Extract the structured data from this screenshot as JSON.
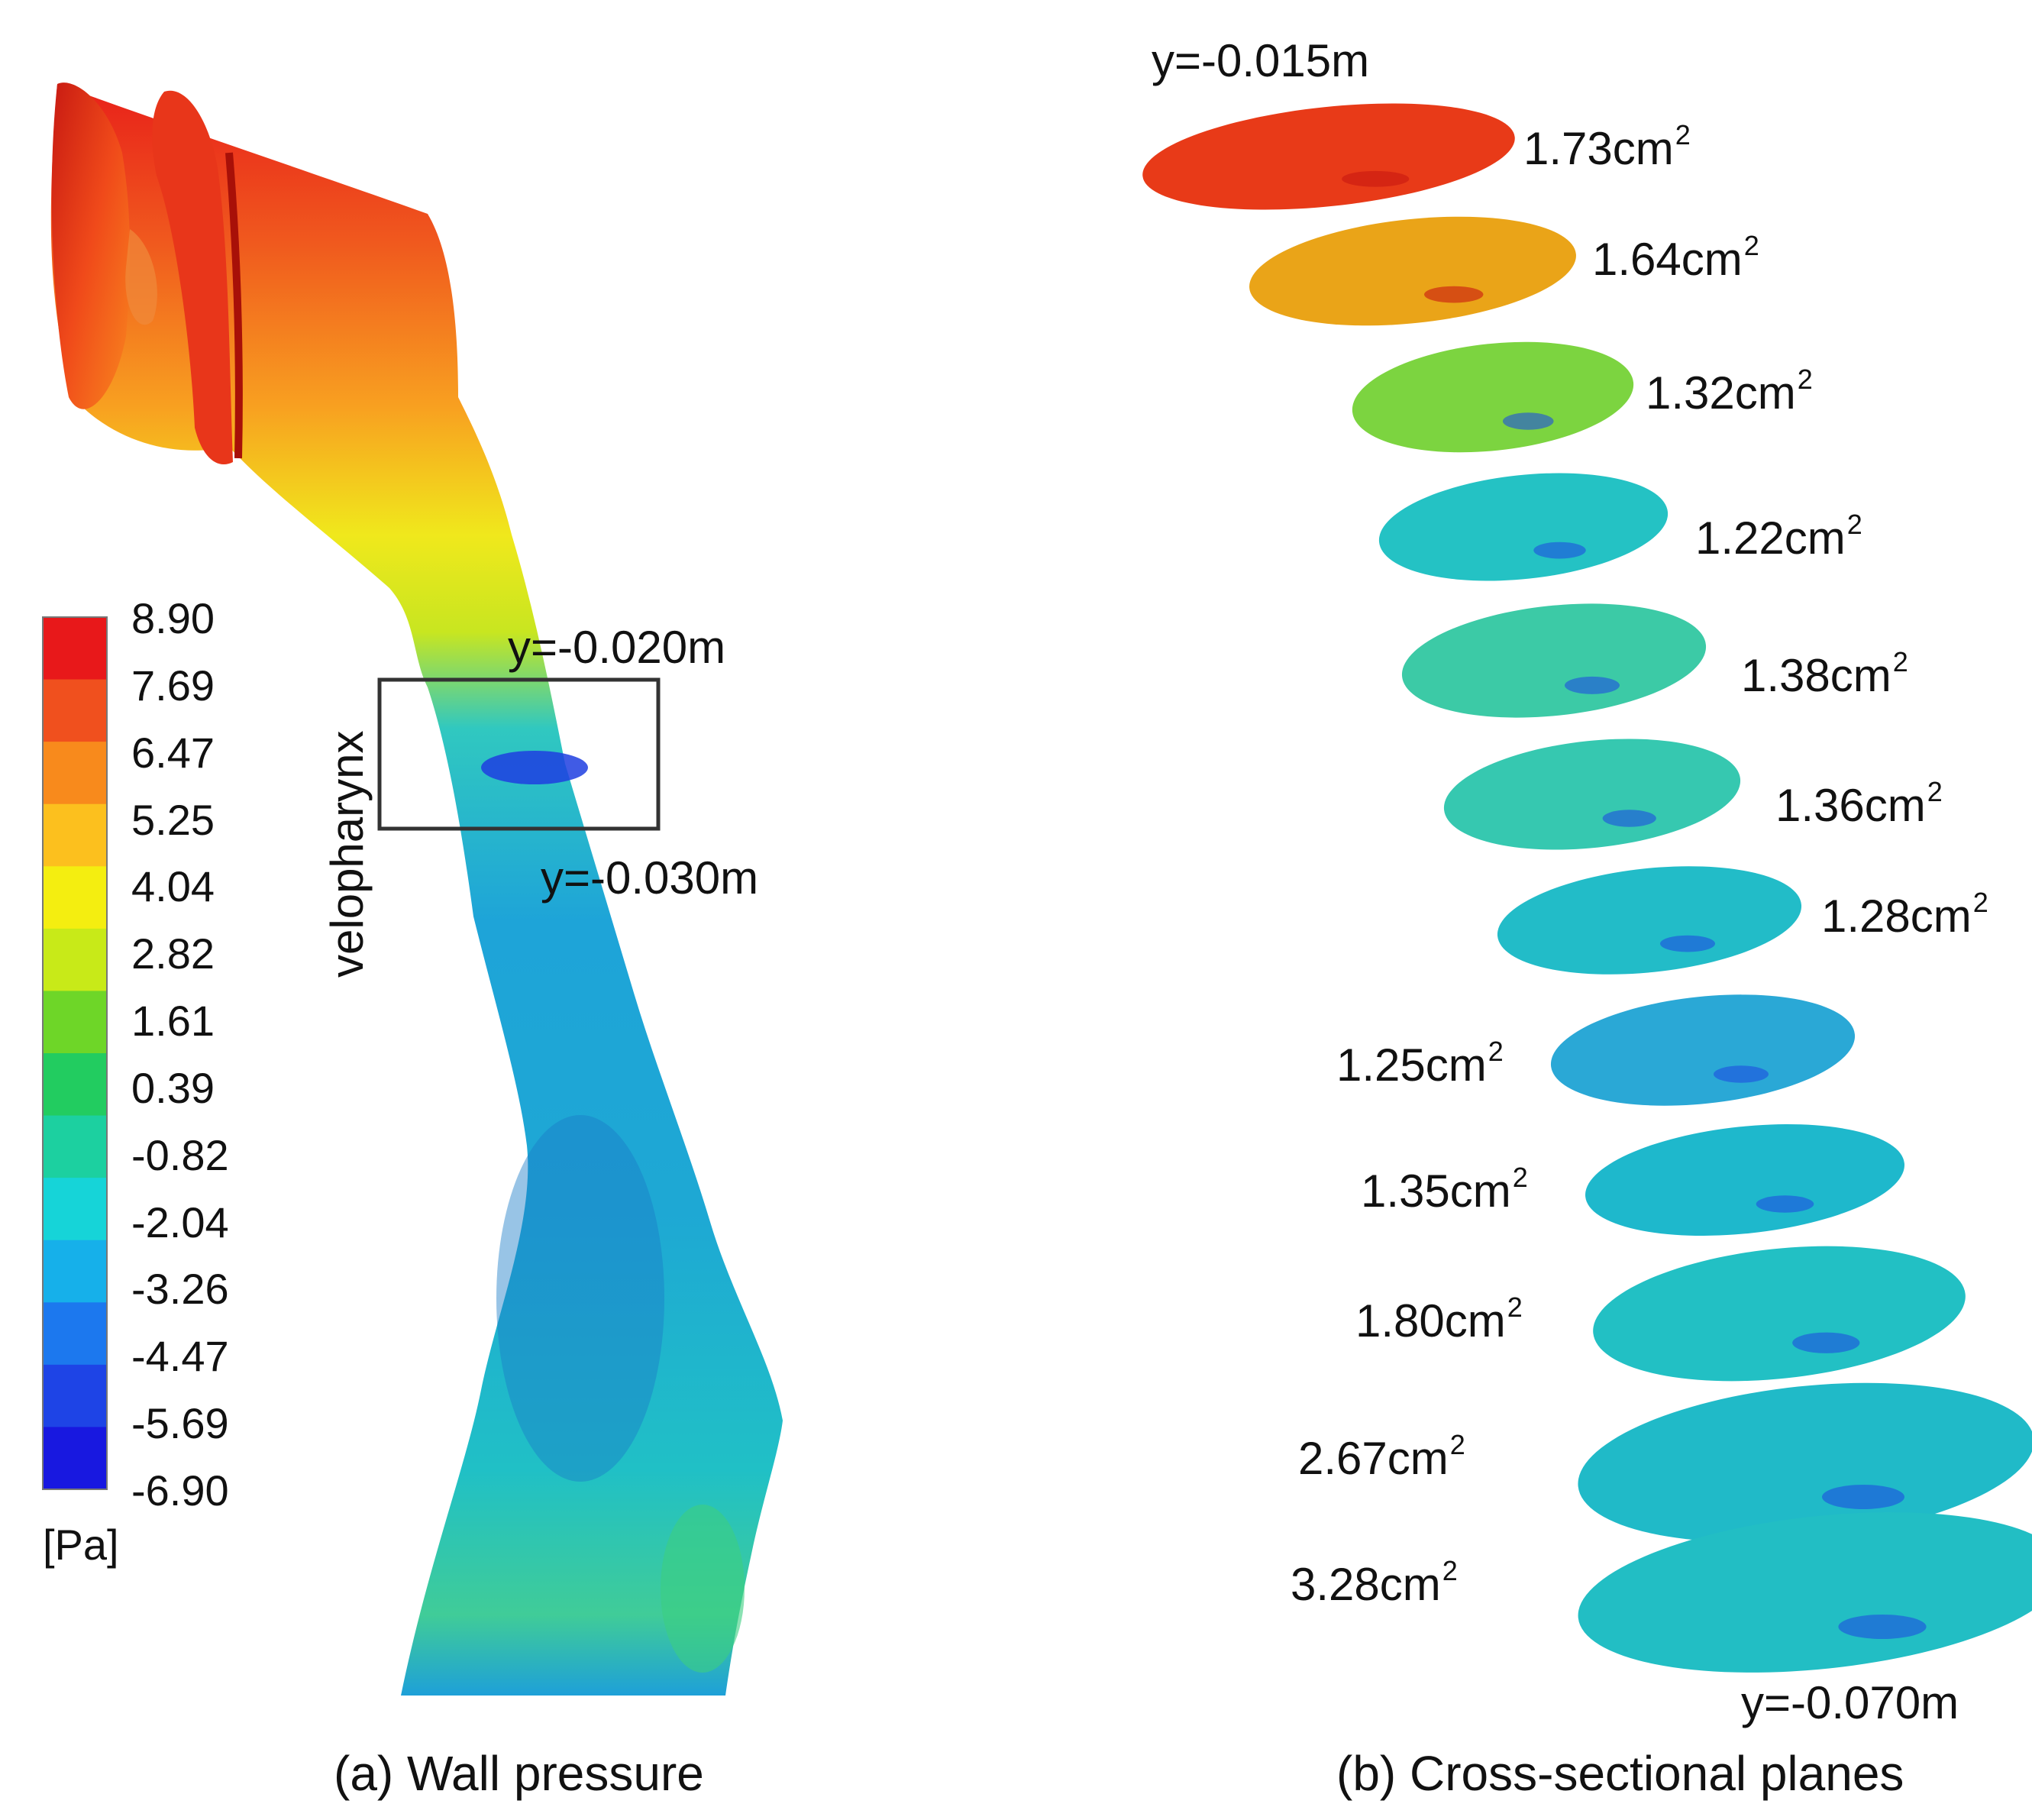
{
  "panel_a": {
    "caption": "(a) Wall pressure",
    "region_label": "velopharynx",
    "box_top_label": "y=-0.020m",
    "box_bottom_label": "y=-0.030m"
  },
  "colorbar": {
    "unit": "[Pa]",
    "min": -6.9,
    "max": 8.9,
    "ticks": [
      "8.90",
      "7.69",
      "6.47",
      "5.25",
      "4.04",
      "2.82",
      "1.61",
      "0.39",
      "-0.82",
      "-2.04",
      "-3.26",
      "-4.47",
      "-5.69",
      "-6.90"
    ],
    "colors": [
      "#e8181a",
      "#f0501e",
      "#f88a1c",
      "#fcc01e",
      "#f4ee10",
      "#c8ea18",
      "#6ed628",
      "#22cc60",
      "#1cd0a0",
      "#16d4d8",
      "#16b0ea",
      "#1c78ee",
      "#1e44e6",
      "#1818e0"
    ]
  },
  "panel_b": {
    "caption": "(b) Cross-sectional planes",
    "top_label": "y=-0.015m",
    "bottom_label": "y=-0.070m",
    "unit_main": "cm",
    "unit_sup": "2",
    "sections": [
      {
        "area": "1.73",
        "color": "#e83a18"
      },
      {
        "area": "1.64",
        "color": "#eaa418"
      },
      {
        "area": "1.32",
        "color": "#7cd440"
      },
      {
        "area": "1.22",
        "color": "#24c2c4"
      },
      {
        "area": "1.38",
        "color": "#3ccaa6"
      },
      {
        "area": "1.36",
        "color": "#36c8b0"
      },
      {
        "area": "1.28",
        "color": "#22bcc8"
      },
      {
        "area": "1.25",
        "color": "#2aa8d6"
      },
      {
        "area": "1.35",
        "color": "#1eb8cc"
      },
      {
        "area": "1.80",
        "color": "#22c0c4"
      },
      {
        "area": "2.67",
        "color": "#20bac8"
      },
      {
        "area": "3.28",
        "color": "#22bec4"
      }
    ]
  }
}
